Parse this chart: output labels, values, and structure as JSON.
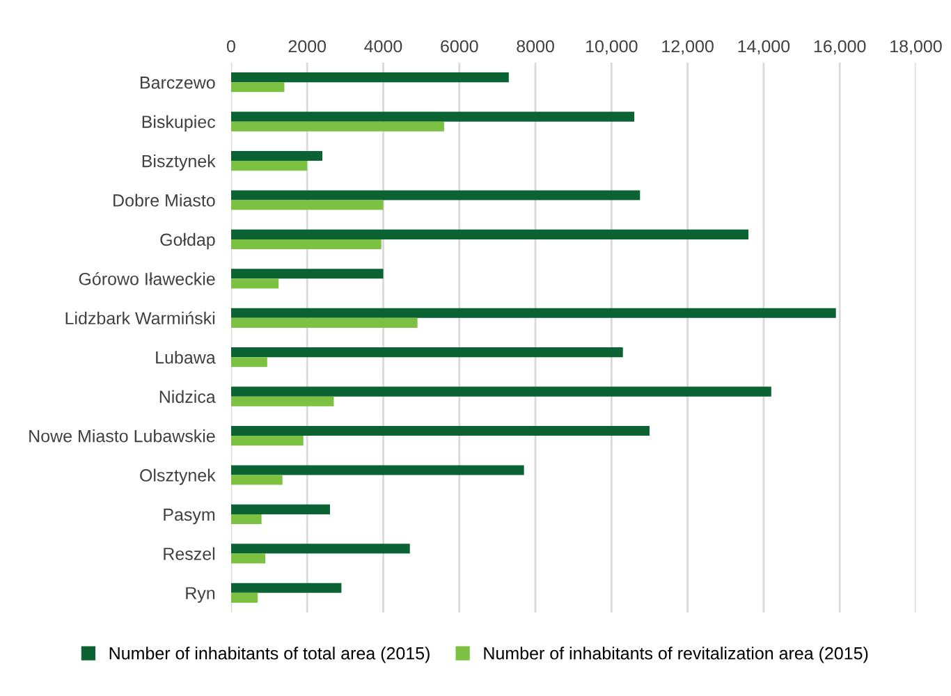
{
  "chart_data": {
    "type": "bar",
    "orientation": "horizontal",
    "categories": [
      "Barczewo",
      "Biskupiec",
      "Bisztynek",
      "Dobre Miasto",
      "Gołdap",
      "Górowo Iławeckie",
      "Lidzbark Warmiński",
      "Lubawa",
      "Nidzica",
      "Nowe Miasto Lubawskie",
      "Olsztynek",
      "Pasym",
      "Reszel",
      "Ryn"
    ],
    "series": [
      {
        "name": "Number of inhabitants of total area (2015)",
        "color": "#0b6232",
        "values": [
          7300,
          10600,
          2400,
          10750,
          13600,
          4000,
          15900,
          10300,
          14200,
          11000,
          7700,
          2600,
          4700,
          2900
        ]
      },
      {
        "name": "Number of inhabitants of revitalization area (2015)",
        "color": "#7cc142",
        "values": [
          1400,
          5600,
          2000,
          4000,
          3950,
          1250,
          4900,
          950,
          2700,
          1900,
          1350,
          800,
          900,
          700
        ]
      }
    ],
    "xlim": [
      0,
      18000
    ],
    "xticks": [
      0,
      2000,
      4000,
      6000,
      8000,
      {
        "value": 10000,
        "label": "10,000"
      },
      {
        "value": 12000,
        "label": "12,000"
      },
      {
        "value": 14000,
        "label": "14,000"
      },
      {
        "value": 16000,
        "label": "16,000"
      },
      {
        "value": 18000,
        "label": "18,000"
      }
    ],
    "grid": "x",
    "legend": "bottom"
  }
}
